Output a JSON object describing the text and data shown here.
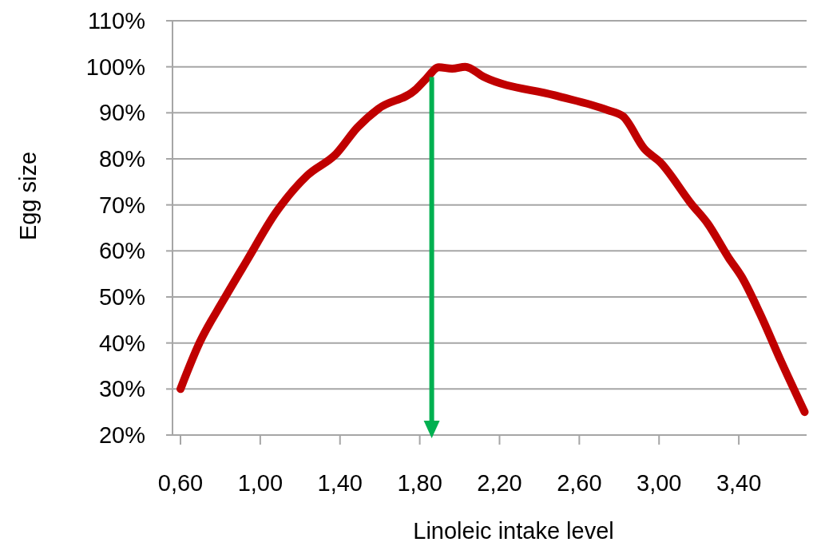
{
  "chart_data": {
    "type": "line",
    "xlabel": "Linoleic intake level",
    "ylabel": "Egg size",
    "x": [
      0.6,
      0.695,
      0.814,
      0.933,
      1.078,
      1.236,
      1.381,
      1.487,
      1.593,
      1.778,
      1.83,
      1.896,
      1.962,
      2.028,
      2.121,
      2.477,
      2.741,
      2.82,
      2.926,
      3.005,
      3.164,
      3.243,
      3.349,
      3.414,
      3.507,
      3.613,
      3.73
    ],
    "series": [
      {
        "color": "#c00000",
        "values": [
          30,
          40,
          49.2,
          57.9,
          68.3,
          76.4,
          81.1,
          86.8,
          90.9,
          95,
          97.3,
          99.9,
          99.6,
          100,
          97.8,
          93.8,
          90.6,
          89.2,
          82.2,
          79.3,
          70.1,
          66,
          58.5,
          54.4,
          46.3,
          35.9,
          25
        ]
      }
    ],
    "xlim": [
      0.56,
      3.74
    ],
    "xticks": [
      {
        "value": 0.6,
        "label": "0,60"
      },
      {
        "value": 1.0,
        "label": "1,00"
      },
      {
        "value": 1.4,
        "label": "1,40"
      },
      {
        "value": 1.8,
        "label": "1,80"
      },
      {
        "value": 2.2,
        "label": "2,20"
      },
      {
        "value": 2.6,
        "label": "2,60"
      },
      {
        "value": 3.0,
        "label": "3,00"
      },
      {
        "value": 3.4,
        "label": "3,40"
      }
    ],
    "ylim": [
      20,
      110
    ],
    "yticks": [
      {
        "value": 20,
        "label": "20%"
      },
      {
        "value": 30,
        "label": "30%"
      },
      {
        "value": 40,
        "label": "40%"
      },
      {
        "value": 50,
        "label": "50%"
      },
      {
        "value": 60,
        "label": "60%"
      },
      {
        "value": 70,
        "label": "70%"
      },
      {
        "value": 80,
        "label": "80%"
      },
      {
        "value": 90,
        "label": "90%"
      },
      {
        "value": 100,
        "label": "100%"
      },
      {
        "value": 110,
        "label": "110%"
      }
    ],
    "grid": "y",
    "ref_lines": [
      {
        "axis": "x",
        "value": 1.86,
        "color": "#00b050"
      }
    ]
  }
}
